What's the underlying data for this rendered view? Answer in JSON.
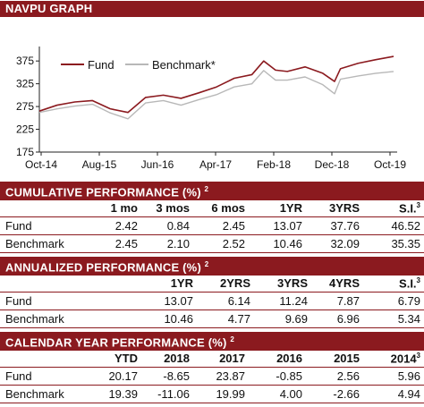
{
  "sections": {
    "navpu_title": "NAVPU GRAPH",
    "cumulative_title": "CUMULATIVE PERFORMANCE (%)",
    "cumulative_sup": "2",
    "annualized_title": "ANNUALIZED  PERFORMANCE (%)",
    "annualized_sup": "2",
    "calendar_title": "CALENDAR YEAR  PERFORMANCE (%)",
    "calendar_sup": "2"
  },
  "colors": {
    "header_bg": "#8b1a1f",
    "fund_line": "#8b1a1f",
    "benchmark_line": "#b8b8b8"
  },
  "chart_data": {
    "type": "line",
    "title": "",
    "xlabel": "",
    "ylabel": "",
    "ylim": [
      175,
      395
    ],
    "yticks": [
      "375",
      "325",
      "275",
      "225",
      "175"
    ],
    "ytick_values": [
      375,
      325,
      275,
      225,
      175
    ],
    "xticks": [
      "Oct-14",
      "Aug-15",
      "Jun-16",
      "Apr-17",
      "Feb-18",
      "Dec-18",
      "Oct-19"
    ],
    "legend_position": "top-left",
    "grid": false,
    "x": [
      0,
      3,
      6,
      9,
      12,
      15,
      18,
      21,
      24,
      27,
      30,
      33,
      36,
      38,
      40,
      42,
      45,
      48,
      50,
      51,
      54,
      57,
      60
    ],
    "series": [
      {
        "name": "Fund",
        "color": "#8b1a1f",
        "values": [
          265,
          278,
          285,
          288,
          270,
          262,
          295,
          300,
          293,
          305,
          318,
          337,
          345,
          375,
          355,
          352,
          362,
          348,
          330,
          358,
          370,
          378,
          385
        ]
      },
      {
        "name": "Benchmark*",
        "color": "#b8b8b8",
        "values": [
          262,
          270,
          276,
          280,
          261,
          248,
          283,
          288,
          278,
          290,
          301,
          318,
          325,
          354,
          333,
          333,
          340,
          323,
          303,
          335,
          342,
          348,
          352
        ]
      }
    ]
  },
  "cumulative": {
    "headers": [
      "",
      "1 mo",
      "3 mos",
      "6 mos",
      "1YR",
      "3YRS",
      "S.I."
    ],
    "si_sup": "3",
    "rows": [
      {
        "label": "Fund",
        "values": [
          "2.42",
          "0.84",
          "2.45",
          "13.07",
          "37.76",
          "46.52"
        ]
      },
      {
        "label": "Benchmark",
        "values": [
          "2.45",
          "2.10",
          "2.52",
          "10.46",
          "32.09",
          "35.35"
        ]
      }
    ]
  },
  "annualized": {
    "headers": [
      "",
      "1YR",
      "2YRS",
      "3YRS",
      "4YRS",
      "S.I."
    ],
    "si_sup": "3",
    "rows": [
      {
        "label": "Fund",
        "values": [
          "13.07",
          "6.14",
          "11.24",
          "7.87",
          "6.79"
        ]
      },
      {
        "label": "Benchmark",
        "values": [
          "10.46",
          "4.77",
          "9.69",
          "6.96",
          "5.34"
        ]
      }
    ]
  },
  "calendar": {
    "headers": [
      "",
      "YTD",
      "2018",
      "2017",
      "2016",
      "2015",
      "2014"
    ],
    "last_sup": "3",
    "rows": [
      {
        "label": "Fund",
        "values": [
          "20.17",
          "-8.65",
          "23.87",
          "-0.85",
          "2.56",
          "5.96"
        ]
      },
      {
        "label": "Benchmark",
        "values": [
          "19.39",
          "-11.06",
          "19.99",
          "4.00",
          "-2.66",
          "4.94"
        ]
      }
    ]
  }
}
